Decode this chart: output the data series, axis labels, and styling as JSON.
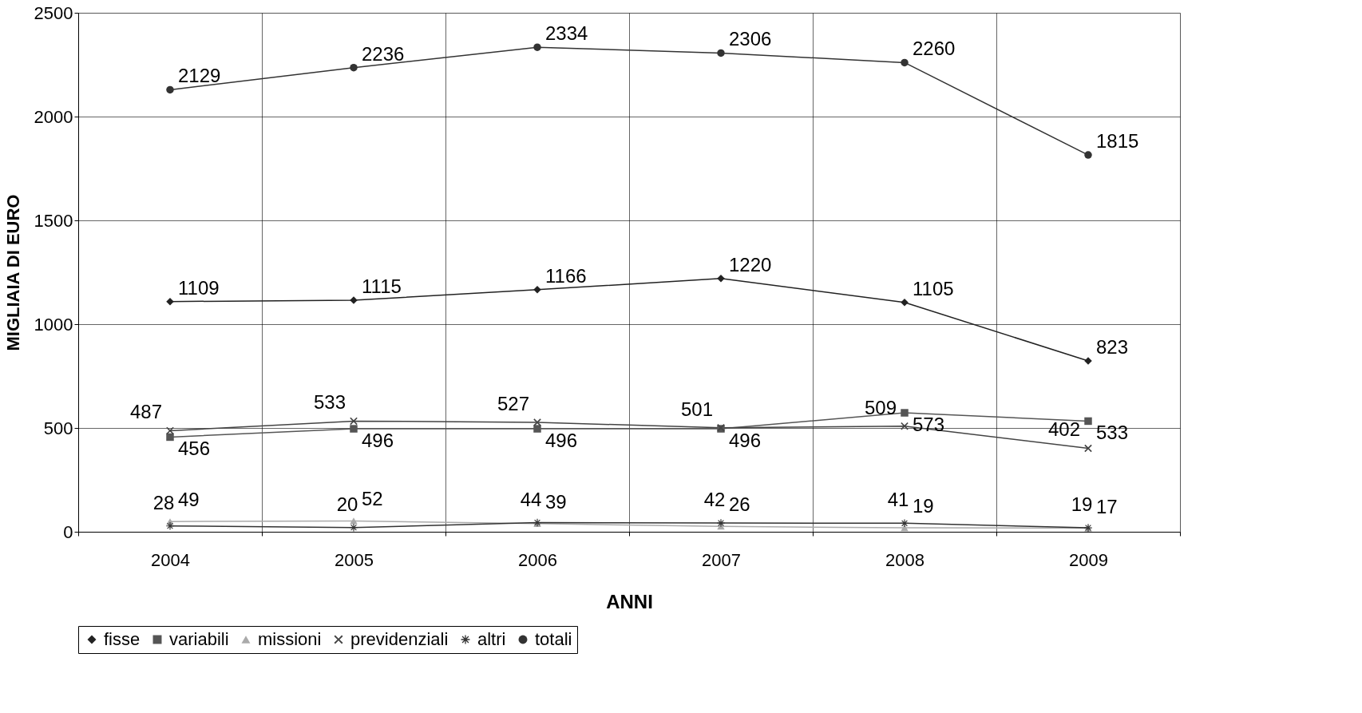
{
  "chart_data": {
    "type": "line",
    "xlabel": "ANNI",
    "ylabel": "MIGLIAIA DI EURO",
    "categories": [
      "2004",
      "2005",
      "2006",
      "2007",
      "2008",
      "2009"
    ],
    "series": [
      {
        "name": "fisse",
        "color": "#222222",
        "marker": "diamond",
        "values": [
          1109,
          1115,
          1166,
          1220,
          1105,
          823
        ]
      },
      {
        "name": "variabili",
        "color": "#555555",
        "marker": "square",
        "values": [
          456,
          496,
          496,
          496,
          573,
          533
        ]
      },
      {
        "name": "missioni",
        "color": "#aaaaaa",
        "marker": "triangle",
        "values": [
          49,
          52,
          39,
          26,
          19,
          17
        ]
      },
      {
        "name": "previdenziali",
        "color": "#444444",
        "marker": "cross",
        "values": [
          487,
          533,
          527,
          501,
          509,
          402
        ]
      },
      {
        "name": "altri",
        "color": "#333333",
        "marker": "star",
        "values": [
          28,
          20,
          44,
          42,
          41,
          19
        ]
      },
      {
        "name": "totali",
        "color": "#333333",
        "marker": "circle",
        "values": [
          2129,
          2236,
          2334,
          2306,
          2260,
          1815
        ]
      }
    ],
    "ylim": [
      0,
      2500
    ],
    "yticks": [
      0,
      500,
      1000,
      1500,
      2000,
      2500
    ],
    "grid": true,
    "legend": "bottom",
    "data_labels": true,
    "line_style": "solid"
  }
}
